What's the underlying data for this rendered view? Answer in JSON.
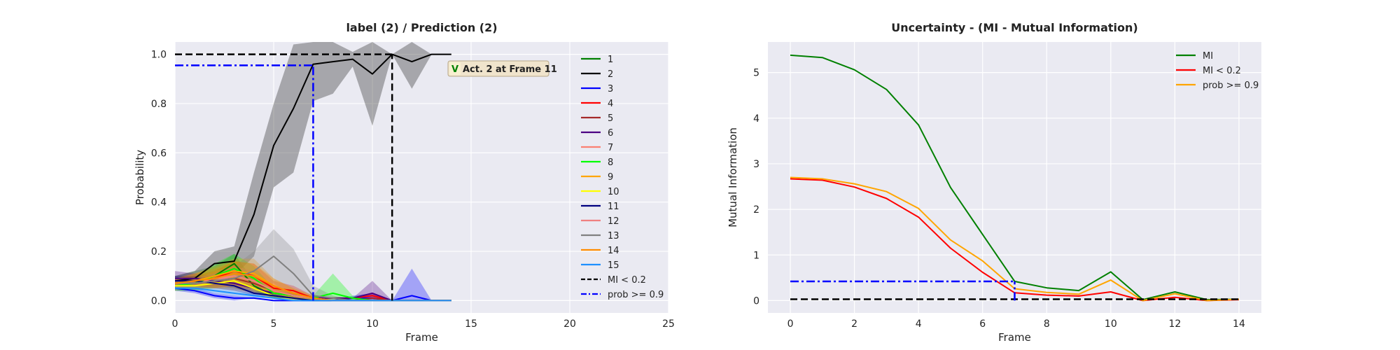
{
  "chart_data": [
    {
      "type": "line",
      "title": "label (2) / Prediction (2)",
      "xlabel": "Frame",
      "ylabel": "Probability",
      "xlim": [
        0,
        25
      ],
      "ylim": [
        -0.05,
        1.05
      ],
      "xticks": [
        0,
        5,
        10,
        15,
        20,
        25
      ],
      "yticks": [
        0.0,
        0.2,
        0.4,
        0.6,
        0.8,
        1.0
      ],
      "grid": true,
      "legend": "right",
      "x": [
        0,
        1,
        2,
        3,
        4,
        5,
        6,
        7,
        8,
        9,
        10,
        11,
        12,
        13,
        14
      ],
      "series": [
        {
          "name": "1",
          "color": "#008000",
          "values": [
            0.07,
            0.08,
            0.1,
            0.15,
            0.06,
            0.02,
            0.01,
            0.0,
            0.0,
            0.0,
            0.0,
            0.0,
            0.0,
            0.0,
            0.0
          ],
          "band": [
            0.03,
            0.04,
            0.04,
            0.04,
            0.02,
            0.01,
            0.01,
            0.0,
            0.0,
            0.0,
            0.0,
            0.0,
            0.0,
            0.0,
            0.0
          ]
        },
        {
          "name": "2",
          "color": "#000000",
          "values": [
            0.08,
            0.09,
            0.15,
            0.16,
            0.35,
            0.63,
            0.78,
            0.96,
            0.97,
            0.98,
            0.92,
            1.0,
            0.97,
            1.0,
            1.0
          ],
          "band": [
            0.02,
            0.03,
            0.05,
            0.06,
            0.17,
            0.17,
            0.26,
            0.15,
            0.13,
            0.03,
            0.21,
            0.0,
            0.11,
            0.0,
            0.0
          ]
        },
        {
          "name": "3",
          "color": "#0000ff",
          "values": [
            0.05,
            0.04,
            0.02,
            0.01,
            0.01,
            0.0,
            0.0,
            0.0,
            0.0,
            0.01,
            0.01,
            0.0,
            0.02,
            0.0,
            0.0
          ],
          "band": [
            0.01,
            0.01,
            0.01,
            0.01,
            0.0,
            0.0,
            0.0,
            0.0,
            0.0,
            0.01,
            0.02,
            0.0,
            0.11,
            0.0,
            0.0
          ]
        },
        {
          "name": "4",
          "color": "#ff0000",
          "values": [
            0.07,
            0.08,
            0.09,
            0.12,
            0.1,
            0.05,
            0.04,
            0.01,
            0.01,
            0.01,
            0.02,
            0.0,
            0.0,
            0.0,
            0.0
          ],
          "band": [
            0.02,
            0.02,
            0.03,
            0.04,
            0.05,
            0.03,
            0.02,
            0.01,
            0.0,
            0.0,
            0.01,
            0.0,
            0.0,
            0.0,
            0.0
          ]
        },
        {
          "name": "5",
          "color": "#a52a2a",
          "values": [
            0.06,
            0.07,
            0.08,
            0.09,
            0.07,
            0.04,
            0.02,
            0.01,
            0.0,
            0.0,
            0.01,
            0.0,
            0.0,
            0.0,
            0.0
          ],
          "band": [
            0.02,
            0.02,
            0.03,
            0.03,
            0.03,
            0.02,
            0.01,
            0.0,
            0.0,
            0.0,
            0.0,
            0.0,
            0.0,
            0.0,
            0.0
          ]
        },
        {
          "name": "6",
          "color": "#4b0082",
          "values": [
            0.09,
            0.09,
            0.08,
            0.07,
            0.05,
            0.03,
            0.02,
            0.01,
            0.01,
            0.01,
            0.03,
            0.0,
            0.0,
            0.0,
            0.0
          ],
          "band": [
            0.03,
            0.02,
            0.02,
            0.02,
            0.02,
            0.01,
            0.01,
            0.0,
            0.0,
            0.0,
            0.05,
            0.0,
            0.0,
            0.0,
            0.0
          ]
        },
        {
          "name": "7",
          "color": "#fa8072",
          "values": [
            0.06,
            0.07,
            0.09,
            0.1,
            0.08,
            0.04,
            0.02,
            0.01,
            0.0,
            0.0,
            0.0,
            0.0,
            0.0,
            0.0,
            0.0
          ],
          "band": [
            0.02,
            0.02,
            0.03,
            0.04,
            0.04,
            0.02,
            0.01,
            0.0,
            0.0,
            0.0,
            0.0,
            0.0,
            0.0,
            0.0,
            0.0
          ]
        },
        {
          "name": "8",
          "color": "#00ff00",
          "values": [
            0.06,
            0.07,
            0.1,
            0.13,
            0.09,
            0.03,
            0.02,
            0.01,
            0.03,
            0.01,
            0.0,
            0.0,
            0.0,
            0.0,
            0.0
          ],
          "band": [
            0.02,
            0.03,
            0.05,
            0.06,
            0.05,
            0.02,
            0.01,
            0.01,
            0.08,
            0.01,
            0.0,
            0.0,
            0.0,
            0.0,
            0.0
          ]
        },
        {
          "name": "9",
          "color": "#ffa500",
          "values": [
            0.07,
            0.08,
            0.1,
            0.12,
            0.11,
            0.06,
            0.03,
            0.01,
            0.0,
            0.0,
            0.0,
            0.0,
            0.0,
            0.0,
            0.0
          ],
          "band": [
            0.02,
            0.03,
            0.04,
            0.05,
            0.06,
            0.03,
            0.02,
            0.01,
            0.0,
            0.0,
            0.0,
            0.0,
            0.0,
            0.0,
            0.0
          ]
        },
        {
          "name": "10",
          "color": "#ffff00",
          "values": [
            0.06,
            0.06,
            0.07,
            0.08,
            0.05,
            0.02,
            0.01,
            0.0,
            0.0,
            0.0,
            0.0,
            0.0,
            0.0,
            0.0,
            0.0
          ],
          "band": [
            0.02,
            0.02,
            0.02,
            0.03,
            0.02,
            0.01,
            0.01,
            0.0,
            0.0,
            0.0,
            0.0,
            0.0,
            0.0,
            0.0,
            0.0
          ]
        },
        {
          "name": "11",
          "color": "#000080",
          "values": [
            0.08,
            0.08,
            0.07,
            0.06,
            0.03,
            0.02,
            0.01,
            0.0,
            0.0,
            0.0,
            0.0,
            0.0,
            0.0,
            0.0,
            0.0
          ],
          "band": [
            0.02,
            0.02,
            0.02,
            0.02,
            0.01,
            0.01,
            0.0,
            0.0,
            0.0,
            0.0,
            0.0,
            0.0,
            0.0,
            0.0,
            0.0
          ]
        },
        {
          "name": "12",
          "color": "#f08080",
          "values": [
            0.07,
            0.07,
            0.08,
            0.1,
            0.08,
            0.04,
            0.02,
            0.01,
            0.0,
            0.0,
            0.0,
            0.0,
            0.0,
            0.0,
            0.0
          ],
          "band": [
            0.02,
            0.02,
            0.03,
            0.04,
            0.04,
            0.02,
            0.01,
            0.0,
            0.0,
            0.0,
            0.0,
            0.0,
            0.0,
            0.0,
            0.0
          ]
        },
        {
          "name": "13",
          "color": "#808080",
          "values": [
            0.07,
            0.07,
            0.08,
            0.09,
            0.12,
            0.18,
            0.11,
            0.02,
            0.01,
            0.0,
            0.0,
            0.0,
            0.0,
            0.0,
            0.0
          ],
          "band": [
            0.02,
            0.02,
            0.03,
            0.05,
            0.08,
            0.11,
            0.1,
            0.04,
            0.01,
            0.0,
            0.0,
            0.0,
            0.0,
            0.0,
            0.0
          ]
        },
        {
          "name": "14",
          "color": "#ff8c00",
          "values": [
            0.07,
            0.08,
            0.09,
            0.11,
            0.1,
            0.06,
            0.03,
            0.01,
            0.0,
            0.0,
            0.0,
            0.0,
            0.0,
            0.0,
            0.0
          ],
          "band": [
            0.02,
            0.03,
            0.04,
            0.05,
            0.05,
            0.03,
            0.02,
            0.01,
            0.0,
            0.0,
            0.0,
            0.0,
            0.0,
            0.0,
            0.0
          ]
        },
        {
          "name": "15",
          "color": "#1e90ff",
          "values": [
            0.05,
            0.05,
            0.04,
            0.03,
            0.02,
            0.01,
            0.0,
            0.0,
            0.0,
            0.0,
            0.0,
            0.0,
            0.0,
            0.0,
            0.0
          ],
          "band": [
            0.01,
            0.01,
            0.01,
            0.01,
            0.01,
            0.0,
            0.0,
            0.0,
            0.0,
            0.0,
            0.0,
            0.0,
            0.0,
            0.0,
            0.0
          ]
        }
      ],
      "reference_lines": [
        {
          "name": "MI < 0.2",
          "color": "#000000",
          "dash": "dashed",
          "horizontal": {
            "y": 1.0,
            "x_from": 0,
            "x_to": 11
          },
          "vertical": {
            "x": 11,
            "y_from": 0.0,
            "y_to": 1.0
          }
        },
        {
          "name": "prob >= 0.9",
          "color": "#0000ff",
          "dash": "dashdot",
          "horizontal": {
            "y": 0.955,
            "x_from": 0,
            "x_to": 7
          },
          "vertical": {
            "x": 7,
            "y_from": 0.0,
            "y_to": 0.955
          }
        }
      ],
      "annotation": {
        "badge": "V",
        "text": "Act. 2 at Frame 11",
        "badge_color": "#008000",
        "background": "#f0e4cc"
      }
    },
    {
      "type": "line",
      "title": "Uncertainty - (MI - Mutual Information)",
      "xlabel": "Frame",
      "ylabel": "Mutual Information",
      "xlim": [
        -0.7,
        14.7
      ],
      "ylim": [
        -0.27,
        5.67
      ],
      "xticks": [
        0,
        2,
        4,
        6,
        8,
        10,
        12,
        14
      ],
      "yticks": [
        0,
        1,
        2,
        3,
        4,
        5
      ],
      "grid": true,
      "legend": "top-right",
      "x": [
        0,
        1,
        2,
        3,
        4,
        5,
        6,
        7,
        8,
        9,
        10,
        11,
        12,
        13,
        14
      ],
      "series": [
        {
          "name": "MI",
          "color": "#008000",
          "values": [
            5.38,
            5.33,
            5.06,
            4.63,
            3.85,
            2.48,
            1.45,
            0.42,
            0.28,
            0.22,
            0.63,
            0.02,
            0.19,
            0.02,
            0.03
          ]
        },
        {
          "name": "MI < 0.2",
          "color": "#ff0000",
          "values": [
            2.67,
            2.64,
            2.49,
            2.24,
            1.83,
            1.15,
            0.62,
            0.17,
            0.12,
            0.1,
            0.19,
            0.0,
            0.07,
            0.0,
            0.02
          ]
        },
        {
          "name": "prob >= 0.9",
          "color": "#ffa500",
          "values": [
            2.7,
            2.67,
            2.56,
            2.39,
            2.02,
            1.33,
            0.87,
            0.26,
            0.18,
            0.14,
            0.45,
            0.0,
            0.15,
            0.0,
            0.03
          ]
        }
      ],
      "reference_lines": [
        {
          "color": "#000000",
          "dash": "dashed",
          "horizontal": {
            "y": 0.03,
            "x_from": 0,
            "x_to": 14
          }
        },
        {
          "color": "#0000ff",
          "dash": "dashdot",
          "horizontal": {
            "y": 0.42,
            "x_from": 0,
            "x_to": 7
          },
          "vertical": {
            "x": 7,
            "y_from": 0.0,
            "y_to": 0.42
          }
        }
      ]
    }
  ]
}
